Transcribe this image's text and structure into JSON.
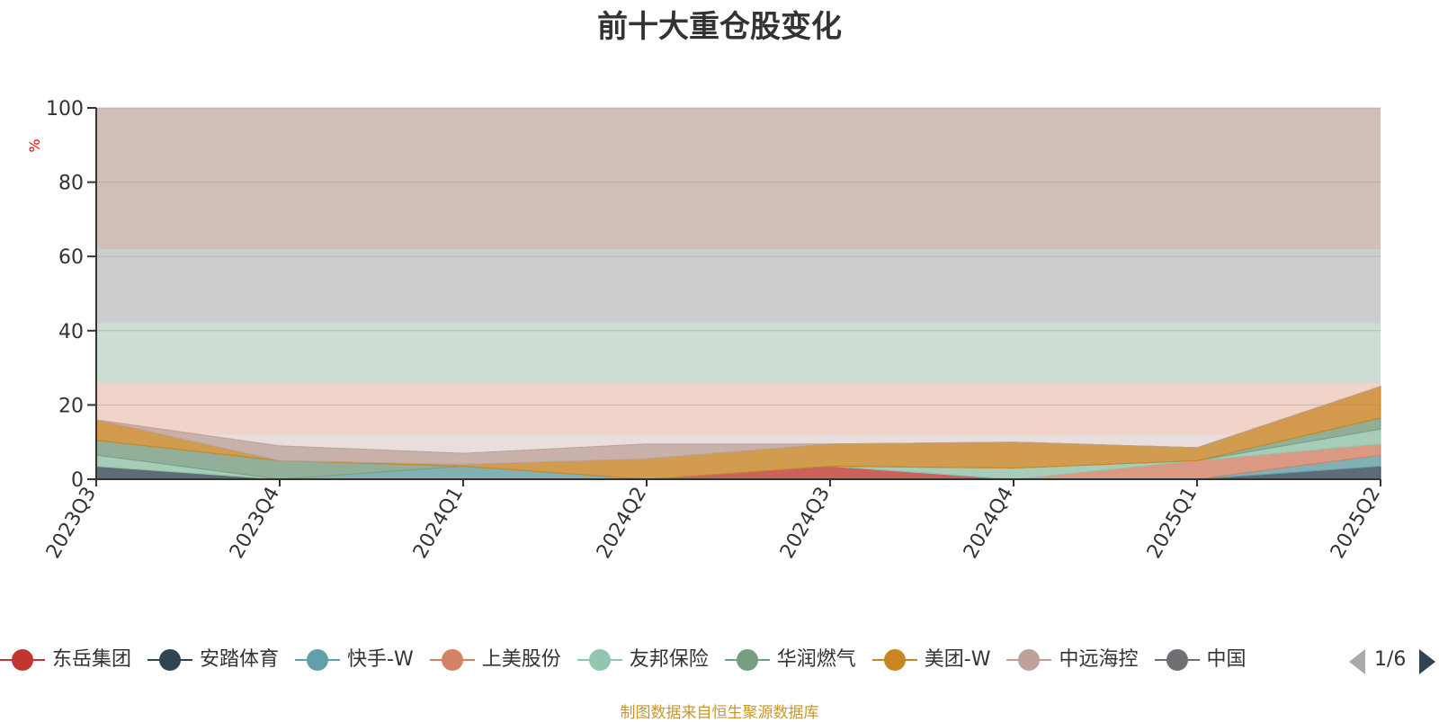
{
  "chart_data": {
    "type": "area",
    "title": "前十大重仓股变化",
    "ylabel": "%",
    "xlabel": "",
    "ylim": [
      0,
      100
    ],
    "yticks": [
      0,
      20,
      40,
      60,
      80,
      100
    ],
    "grid": true,
    "stacked": true,
    "legend_position": "bottom",
    "categories": [
      "2023Q3",
      "2023Q4",
      "2024Q1",
      "2024Q2",
      "2024Q3",
      "2024Q4",
      "2025Q1",
      "2025Q2"
    ],
    "series": [
      {
        "name": "东岳集团",
        "color": "#c23531",
        "values": [
          0,
          0,
          0,
          0,
          3.5,
          0,
          0,
          0
        ]
      },
      {
        "name": "安踏体育",
        "color": "#2f4554",
        "values": [
          3.5,
          0,
          0,
          0,
          0,
          0,
          0,
          3.5
        ]
      },
      {
        "name": "快手-W",
        "color": "#61a0a8",
        "values": [
          0,
          0,
          3.5,
          0,
          0,
          0,
          0,
          3
        ]
      },
      {
        "name": "上美股份",
        "color": "#d48265",
        "values": [
          0,
          0,
          0,
          0,
          0,
          0,
          5,
          3
        ]
      },
      {
        "name": "友邦保险",
        "color": "#91c7ae",
        "values": [
          3,
          0,
          0,
          0,
          0,
          3,
          0,
          4
        ]
      },
      {
        "name": "华润燃气",
        "color": "#749f83",
        "values": [
          4,
          5,
          0,
          0,
          0,
          0,
          0,
          3
        ]
      },
      {
        "name": "美团-W",
        "color": "#ca8622",
        "values": [
          5.5,
          0,
          0.5,
          5.5,
          6,
          7,
          3.5,
          8.5
        ]
      },
      {
        "name": "中远海控",
        "color": "#bda29a",
        "values": [
          0,
          4,
          3,
          4,
          0,
          0,
          0,
          0
        ]
      }
    ]
  },
  "legend": {
    "items": [
      {
        "name": "东岳集团",
        "color": "#c23531"
      },
      {
        "name": "安踏体育",
        "color": "#2f4554"
      },
      {
        "name": "快手-W",
        "color": "#61a0a8"
      },
      {
        "name": "上美股份",
        "color": "#d48265"
      },
      {
        "name": "友邦保险",
        "color": "#91c7ae"
      },
      {
        "name": "华润燃气",
        "color": "#749f83"
      },
      {
        "name": "美团-W",
        "color": "#ca8622"
      },
      {
        "name": "中远海控",
        "color": "#bda29a"
      },
      {
        "name": "中国",
        "color": "#6e7074"
      }
    ],
    "page": "1/6"
  },
  "source": "制图数据来自恒生聚源数据库"
}
